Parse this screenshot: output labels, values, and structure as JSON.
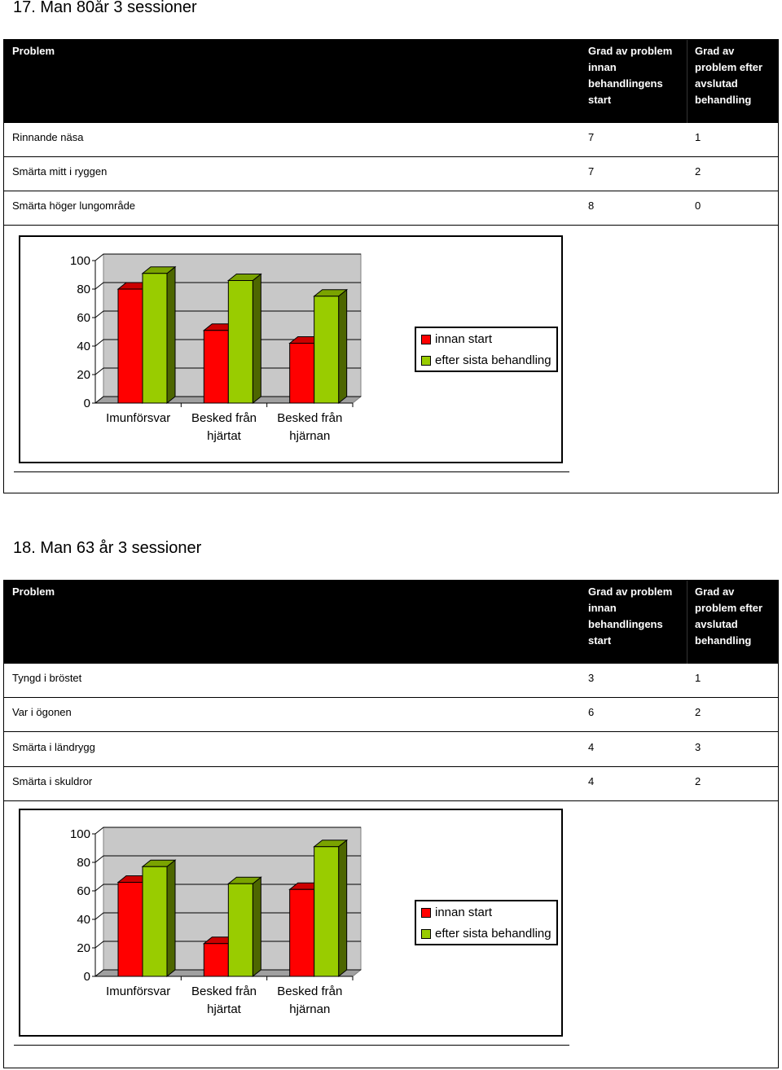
{
  "colors": {
    "before": "#ff0000",
    "after": "#99cc00"
  },
  "sections": [
    {
      "title": "17. Man 80år  3 sessioner",
      "headers": {
        "problem": "Problem",
        "before": "Grad av problem innan behandlingens start",
        "after": "Grad av problem efter avslutad behandling"
      },
      "rows": [
        {
          "problem": "Rinnande näsa",
          "before": "7",
          "after": "1"
        },
        {
          "problem": "Smärta mitt i ryggen",
          "before": "7",
          "after": "2"
        },
        {
          "problem": "Smärta höger lungområde",
          "before": "8",
          "after": "0"
        }
      ],
      "chart_data": {
        "type": "bar",
        "categories": [
          "Imunförsvar",
          "Besked från hjärtat",
          "Besked från hjärnan"
        ],
        "series": [
          {
            "name": "innan start",
            "values": [
              80,
              51,
              42
            ]
          },
          {
            "name": "efter sista behandling",
            "values": [
              91,
              86,
              75
            ]
          }
        ],
        "yticks": [
          "0",
          "20",
          "40",
          "60",
          "80",
          "100"
        ],
        "ylim": [
          0,
          100
        ],
        "legend": "right"
      }
    },
    {
      "title": "18. Man 63 år 3 sessioner",
      "headers": {
        "problem": "Problem",
        "before": "Grad av problem innan behandlingens start",
        "after": "Grad av problem efter avslutad behandling"
      },
      "rows": [
        {
          "problem": "Tyngd i bröstet",
          "before": "3",
          "after": "1"
        },
        {
          "problem": "Var i ögonen",
          "before": "6",
          "after": "2"
        },
        {
          "problem": "Smärta i ländrygg",
          "before": "4",
          "after": "3"
        },
        {
          "problem": "Smärta i skuldror",
          "before": "4",
          "after": "2"
        }
      ],
      "chart_data": {
        "type": "bar",
        "categories": [
          "Imunförsvar",
          "Besked från hjärtat",
          "Besked från hjärnan"
        ],
        "series": [
          {
            "name": "innan start",
            "values": [
              66,
              23,
              61
            ]
          },
          {
            "name": "efter sista behandling",
            "values": [
              77,
              65,
              91
            ]
          }
        ],
        "yticks": [
          "0",
          "20",
          "40",
          "60",
          "80",
          "100"
        ],
        "ylim": [
          0,
          100
        ],
        "legend": "right"
      }
    }
  ]
}
